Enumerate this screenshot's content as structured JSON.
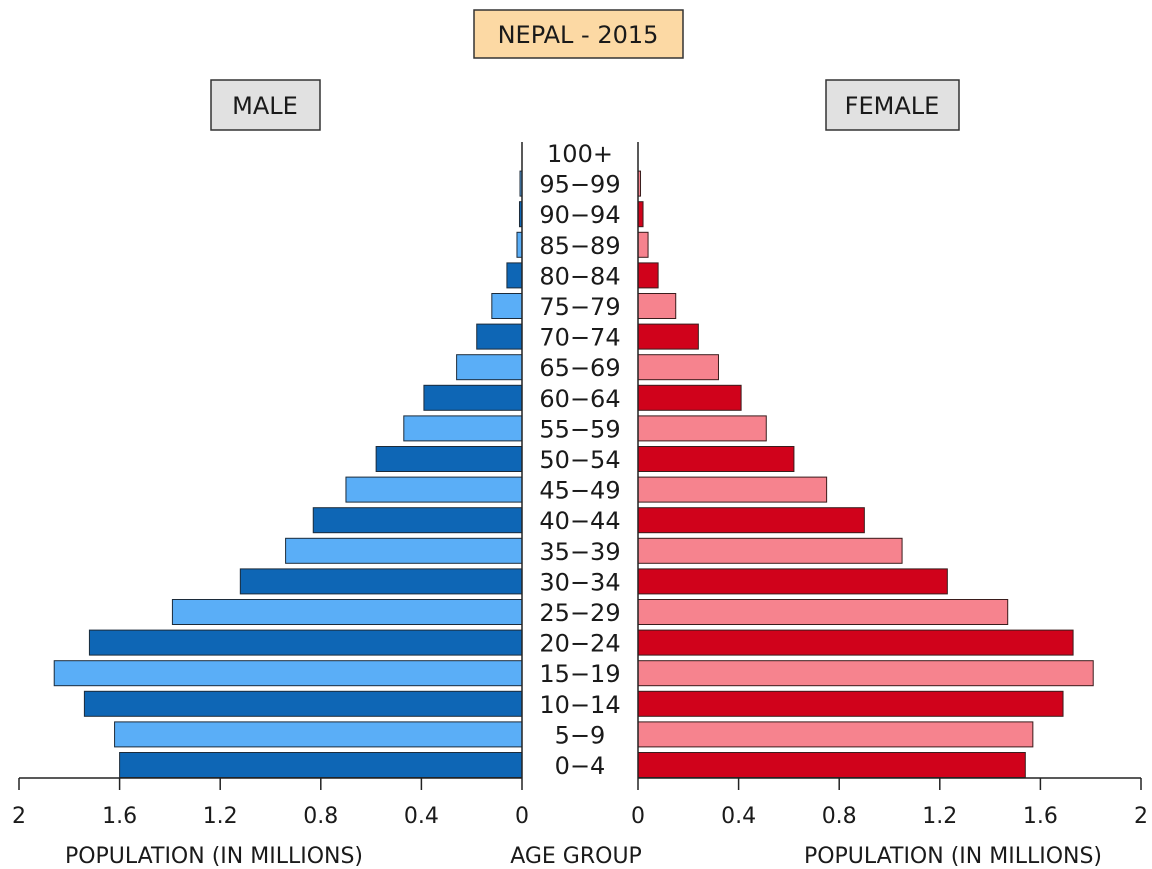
{
  "chart_data": {
    "type": "bar",
    "title": "NEPAL - 2015",
    "left_panel_label": "MALE",
    "right_panel_label": "FEMALE",
    "center_axis_label": "AGE GROUP",
    "xlabel_left": "POPULATION (IN MILLIONS)",
    "xlabel_right": "POPULATION (IN MILLIONS)",
    "xlim": [
      0,
      2
    ],
    "x_ticks_left": [
      "2",
      "1.6",
      "1.2",
      "0.8",
      "0.4",
      "0"
    ],
    "x_ticks_right": [
      "0",
      "0.4",
      "0.8",
      "1.2",
      "1.6",
      "2"
    ],
    "grid": false,
    "categories": [
      "100+",
      "95-99",
      "90-94",
      "85-89",
      "80-84",
      "75-79",
      "70-74",
      "65-69",
      "60-64",
      "55-59",
      "50-54",
      "45-49",
      "40-44",
      "35-39",
      "30-34",
      "25-29",
      "20-24",
      "15-19",
      "10-14",
      "5-9",
      "0-4"
    ],
    "series": [
      {
        "name": "MALE",
        "values": [
          0,
          0.005,
          0.01,
          0.02,
          0.06,
          0.12,
          0.18,
          0.26,
          0.39,
          0.47,
          0.58,
          0.7,
          0.83,
          0.94,
          1.12,
          1.39,
          1.72,
          1.86,
          1.74,
          1.62,
          1.6
        ]
      },
      {
        "name": "FEMALE",
        "values": [
          0,
          0.01,
          0.02,
          0.04,
          0.08,
          0.15,
          0.24,
          0.32,
          0.41,
          0.51,
          0.62,
          0.75,
          0.9,
          1.05,
          1.23,
          1.47,
          1.73,
          1.81,
          1.69,
          1.57,
          1.54
        ]
      }
    ],
    "colors": {
      "male_dark": "#0e66b5",
      "male_light": "#5aaef7",
      "female_dark": "#d0021b",
      "female_light": "#f6838e",
      "title_bg": "#fcd9a4",
      "label_bg": "#e1e1e1"
    }
  }
}
